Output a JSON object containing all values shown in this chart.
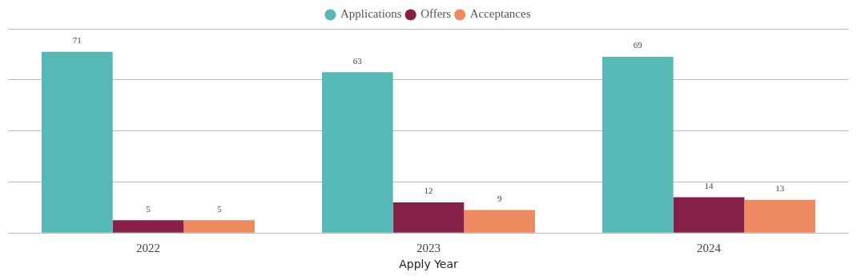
{
  "chart_data": {
    "type": "bar",
    "xlabel": "Apply Year",
    "categories": [
      "2022",
      "2023",
      "2024"
    ],
    "series": [
      {
        "name": "Applications",
        "color": "#56b9b5",
        "values": [
          71,
          63,
          69
        ]
      },
      {
        "name": "Offers",
        "color": "#862049",
        "values": [
          5,
          12,
          14
        ]
      },
      {
        "name": "Acceptances",
        "color": "#ee8a60",
        "values": [
          5,
          9,
          13
        ]
      }
    ],
    "ylim": [
      0,
      80
    ],
    "yticks": [
      {
        "value": 0,
        "label": null
      },
      {
        "value": 20,
        "label": null
      },
      {
        "value": 40,
        "label": null
      },
      {
        "value": 60,
        "label": null
      },
      {
        "value": 80,
        "label": null
      }
    ],
    "tick_labels": "x",
    "grid": "y",
    "legend": "top",
    "data_labels": true
  }
}
